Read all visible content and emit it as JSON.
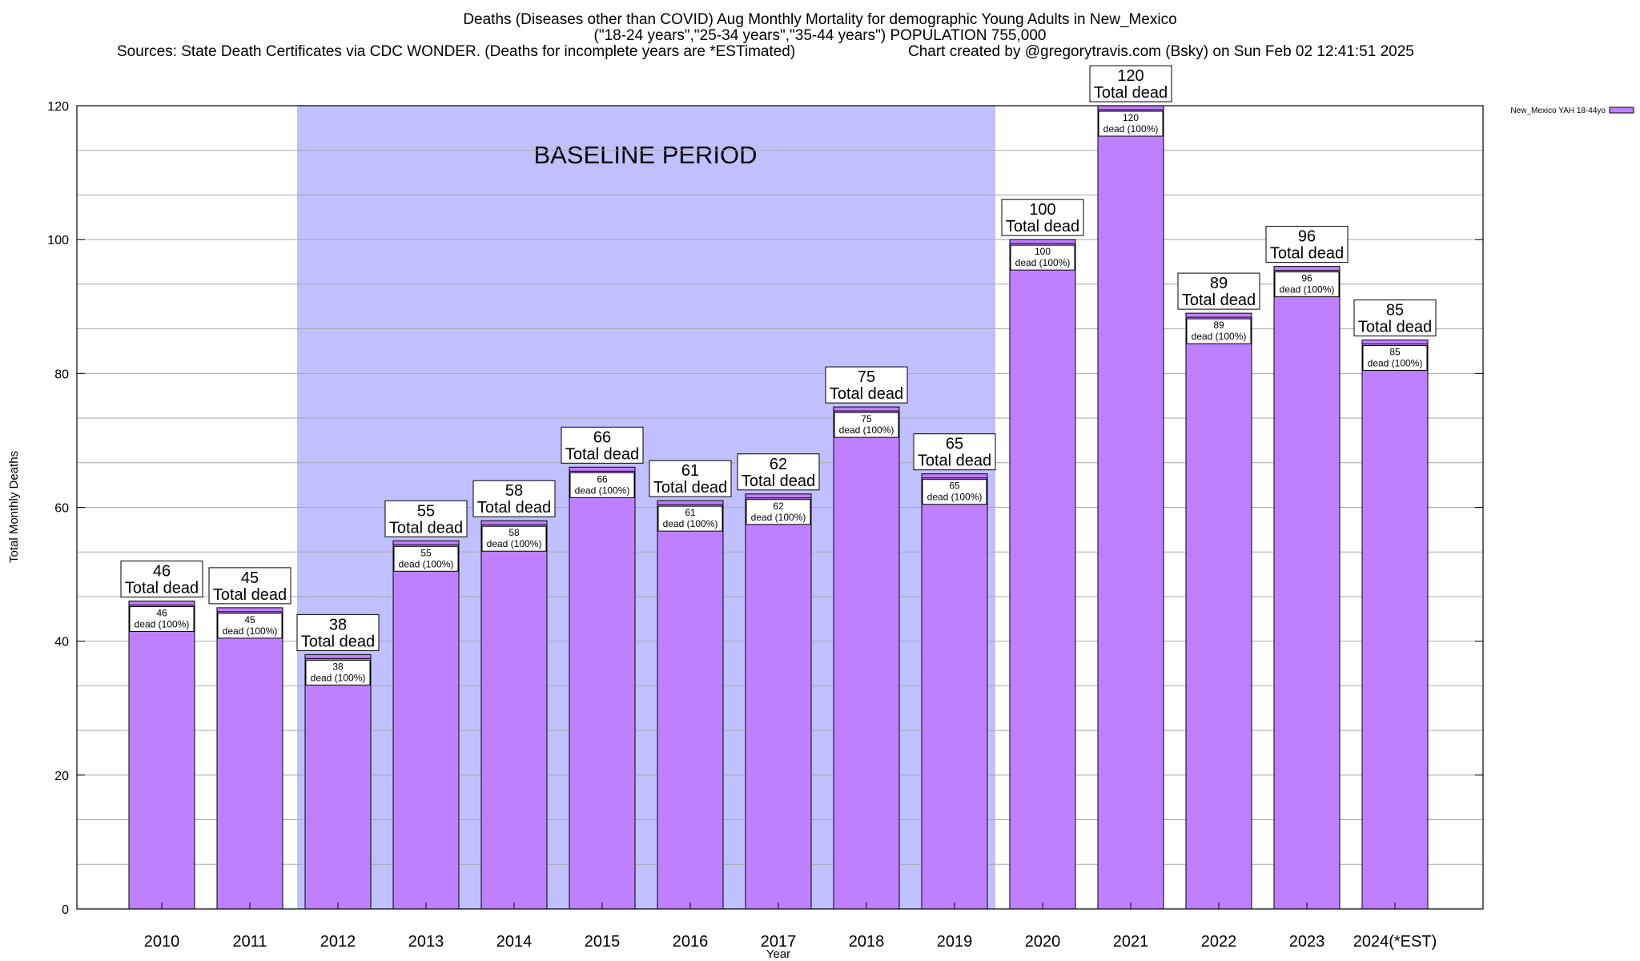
{
  "title": {
    "line1": "Deaths (Diseases other than COVID) Aug Monthly Mortality for demographic Young Adults in New_Mexico",
    "line2": "(\"18-24 years\",\"25-34 years\",\"35-44 years\") POPULATION 755,000",
    "sources": "Sources: State Death Certificates via CDC WONDER. (Deaths for incomplete years are *ESTimated)",
    "credit": "Chart created by @gregorytravis.com (Bsky) on Sun Feb 02 12:41:51 2025"
  },
  "chart_data": {
    "type": "bar",
    "title": "Deaths (Diseases other than COVID) Aug Monthly Mortality for demographic Young Adults in New_Mexico",
    "xlabel": "Year",
    "ylabel": "Total Monthly Deaths",
    "ylim": [
      0,
      120
    ],
    "yticks": [
      0,
      20,
      40,
      60,
      80,
      100,
      120
    ],
    "grid": true,
    "legend_position": "top-right",
    "categories": [
      "2010",
      "2011",
      "2012",
      "2013",
      "2014",
      "2015",
      "2016",
      "2017",
      "2018",
      "2019",
      "2020",
      "2021",
      "2022",
      "2023",
      "2024(*EST)"
    ],
    "series": [
      {
        "name": "New_Mexico YAH 18-44yo",
        "color": "#bf80ff",
        "values": [
          46,
          45,
          38,
          55,
          58,
          66,
          61,
          62,
          75,
          65,
          100,
          120,
          89,
          96,
          85
        ]
      }
    ],
    "total_label": "Total dead",
    "inner_label": "dead (100%)",
    "baseline": {
      "label": "BASELINE PERIOD",
      "start": "2012",
      "end": "2019",
      "color": "#c0c0ff"
    }
  }
}
